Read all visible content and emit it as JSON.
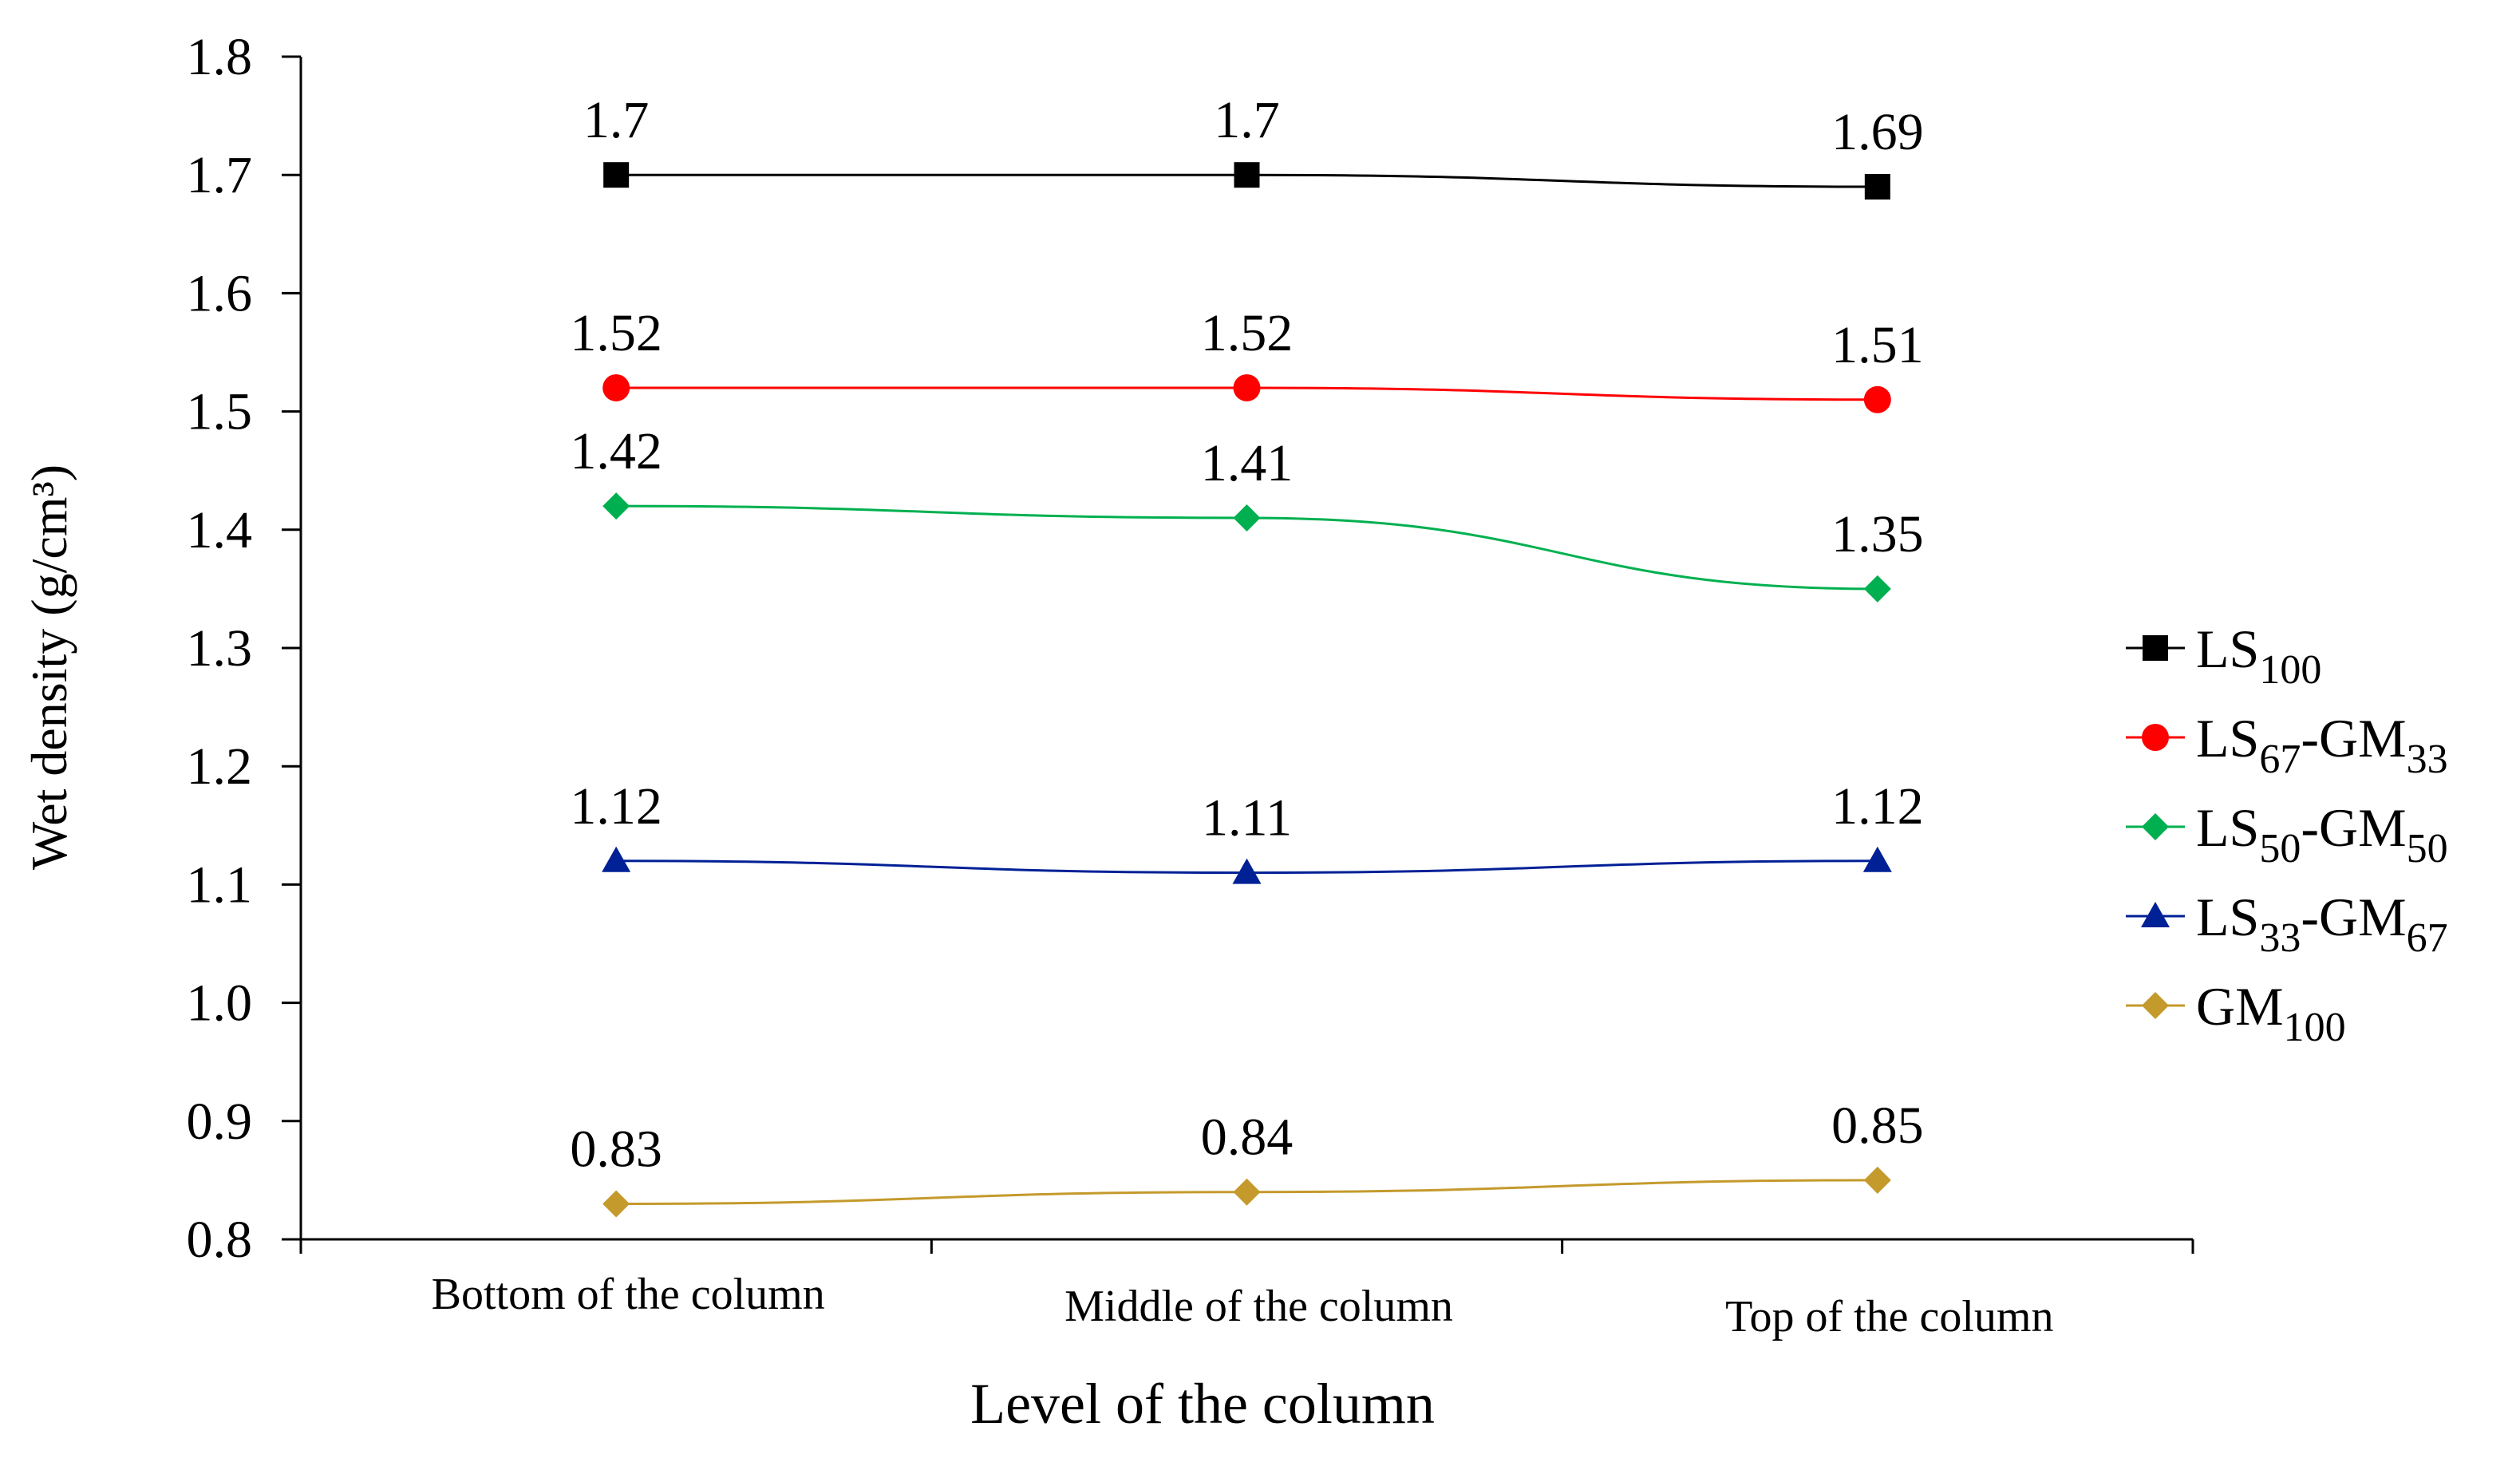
{
  "chart_data": {
    "type": "line",
    "title": "",
    "xlabel": "Level of the column",
    "ylabel": "Wet density (g/cm³)",
    "ylim": [
      0.8,
      1.8
    ],
    "yticks": [
      "0.8",
      "0.9",
      "1.0",
      "1.1",
      "1.2",
      "1.3",
      "1.4",
      "1.5",
      "1.6",
      "1.7",
      "1.8"
    ],
    "categories": [
      "Bottom of the column",
      "Middle of the column",
      "Top of the column"
    ],
    "legend_position": "right",
    "series": [
      {
        "name": "LS100",
        "legend": {
          "base": "LS",
          "sub": "100"
        },
        "marker": "square",
        "color": "#000000",
        "values": [
          1.7,
          1.7,
          1.69
        ],
        "labels": [
          "1.7",
          "1.7",
          "1.69"
        ]
      },
      {
        "name": "LS67-GM33",
        "legend": {
          "base": "LS",
          "sub": "67",
          "mid": "-GM",
          "sub2": "33"
        },
        "marker": "circle",
        "color": "#ff0000",
        "values": [
          1.52,
          1.52,
          1.51
        ],
        "labels": [
          "1.52",
          "1.52",
          "1.51"
        ]
      },
      {
        "name": "LS50-GM50",
        "legend": {
          "base": "LS",
          "sub": "50",
          "mid": "-GM",
          "sub2": "50"
        },
        "marker": "diamond",
        "color": "#00b050",
        "values": [
          1.42,
          1.41,
          1.35
        ],
        "labels": [
          "1.42",
          "1.41",
          "1.35"
        ]
      },
      {
        "name": "LS33-GM67",
        "legend": {
          "base": "LS",
          "sub": "33",
          "mid": "-GM",
          "sub2": "67"
        },
        "marker": "triangle",
        "color": "#002096",
        "values": [
          1.12,
          1.11,
          1.12
        ],
        "labels": [
          "1.12",
          "1.11",
          "1.12"
        ]
      },
      {
        "name": "GM100",
        "legend": {
          "base": "GM",
          "sub": "100"
        },
        "marker": "diamond",
        "color": "#c49a2c",
        "values": [
          0.83,
          0.84,
          0.85
        ],
        "labels": [
          "0.83",
          "0.84",
          "0.85"
        ]
      }
    ]
  }
}
